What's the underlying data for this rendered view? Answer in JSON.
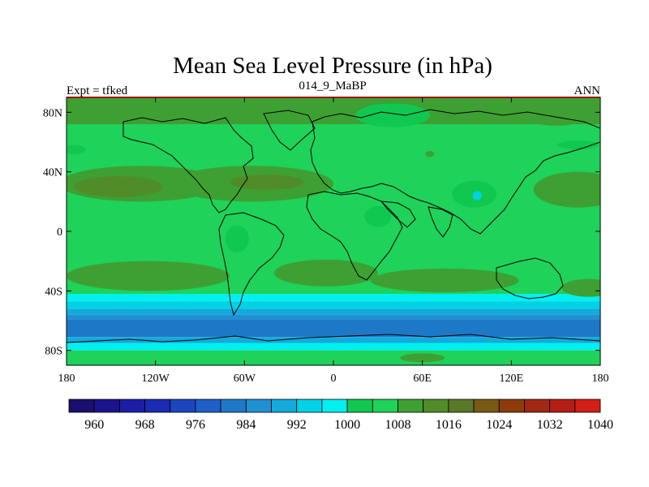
{
  "title": "Mean Sea Level Pressure (in hPa)",
  "subtitle": "014_9_MaBP",
  "left_label": "Expt = tfked",
  "right_label": "ANN",
  "chart_data": {
    "type": "heatmap",
    "x_ticks": [
      "180",
      "120W",
      "60W",
      "0",
      "60E",
      "120E",
      "180"
    ],
    "y_ticks": [
      "80N",
      "40N",
      "0",
      "40S",
      "80S"
    ],
    "xlim": [
      -180,
      180
    ],
    "ylim": [
      -90,
      90
    ],
    "colorbar": {
      "levels": [
        960,
        964,
        968,
        972,
        976,
        980,
        984,
        988,
        992,
        996,
        1000,
        1004,
        1008,
        1012,
        1016,
        1020,
        1024,
        1028,
        1032,
        1036,
        1040
      ],
      "labels": [
        "960",
        "968",
        "976",
        "984",
        "992",
        "1000",
        "1008",
        "1016",
        "1024",
        "1032",
        "1040"
      ],
      "colors": [
        "#1a0e6e",
        "#1c148c",
        "#1a1ea6",
        "#1a2cb4",
        "#1c46c0",
        "#1e5fc8",
        "#1e78c8",
        "#1e91d2",
        "#14aadc",
        "#00d2e6",
        "#00f0f0",
        "#10c850",
        "#1ed25a",
        "#3ea032",
        "#508c28",
        "#5a7828",
        "#785a14",
        "#8c3c0a",
        "#a02814",
        "#b41e14",
        "#d21e14"
      ]
    },
    "bands": [
      {
        "lat_top": 90,
        "lat_bottom": 72,
        "value": 1012
      },
      {
        "lat_top": 72,
        "lat_bottom": -42,
        "value": 1008
      },
      {
        "lat_top": -42,
        "lat_bottom": -47,
        "value": 1000
      },
      {
        "lat_top": -47,
        "lat_bottom": -52,
        "value": 996
      },
      {
        "lat_top": -52,
        "lat_bottom": -56,
        "value": 992
      },
      {
        "lat_top": -56,
        "lat_bottom": -59,
        "value": 988
      },
      {
        "lat_top": -59,
        "lat_bottom": -71,
        "value": 984
      },
      {
        "lat_top": -71,
        "lat_bottom": -75,
        "value": 992
      },
      {
        "lat_top": -75,
        "lat_bottom": -80,
        "value": 1000
      },
      {
        "lat_top": -80,
        "lat_bottom": -90,
        "value": 1008
      }
    ],
    "blobs": [
      {
        "lon": -130,
        "lat": 32,
        "rlon": 55,
        "rlat": 12,
        "value": 1012
      },
      {
        "lon": -145,
        "lat": 30,
        "rlon": 30,
        "rlat": 7,
        "value": 1016
      },
      {
        "lon": -55,
        "lat": 32,
        "rlon": 55,
        "rlat": 12,
        "value": 1012
      },
      {
        "lon": -45,
        "lat": 33,
        "rlon": 25,
        "rlat": 5,
        "value": 1016
      },
      {
        "lon": 165,
        "lat": 28,
        "rlon": 30,
        "rlat": 12,
        "value": 1012
      },
      {
        "lon": 95,
        "lat": 25,
        "rlon": 15,
        "rlat": 9,
        "value": 1004
      },
      {
        "lon": 97,
        "lat": 24,
        "rlon": 3,
        "rlat": 3,
        "value": 996
      },
      {
        "lon": 65,
        "lat": 52,
        "rlon": 3,
        "rlat": 2,
        "value": 1012
      },
      {
        "lon": 30,
        "lat": 10,
        "rlon": 9,
        "rlat": 7,
        "value": 1004
      },
      {
        "lon": -65,
        "lat": -5,
        "rlon": 8,
        "rlat": 9,
        "value": 1004
      },
      {
        "lon": -125,
        "lat": -30,
        "rlon": 55,
        "rlat": 10,
        "value": 1012
      },
      {
        "lon": -5,
        "lat": -28,
        "rlon": 35,
        "rlat": 9,
        "value": 1012
      },
      {
        "lon": 75,
        "lat": -33,
        "rlon": 50,
        "rlat": 8,
        "value": 1012
      },
      {
        "lon": 172,
        "lat": -38,
        "rlon": 18,
        "rlat": 6,
        "value": 1012
      },
      {
        "lon": 40,
        "lat": 78,
        "rlon": 25,
        "rlat": 8,
        "value": 1004
      },
      {
        "lon": 150,
        "lat": 78,
        "rlon": 22,
        "rlat": 7,
        "value": 1012
      },
      {
        "lon": -175,
        "lat": 55,
        "rlon": 8,
        "rlat": 3,
        "value": 1004
      },
      {
        "lon": 165,
        "lat": 58,
        "rlon": 14,
        "rlat": 3,
        "value": 1004
      },
      {
        "lon": 60,
        "lat": -85,
        "rlon": 15,
        "rlat": 3,
        "value": 1012
      }
    ]
  }
}
